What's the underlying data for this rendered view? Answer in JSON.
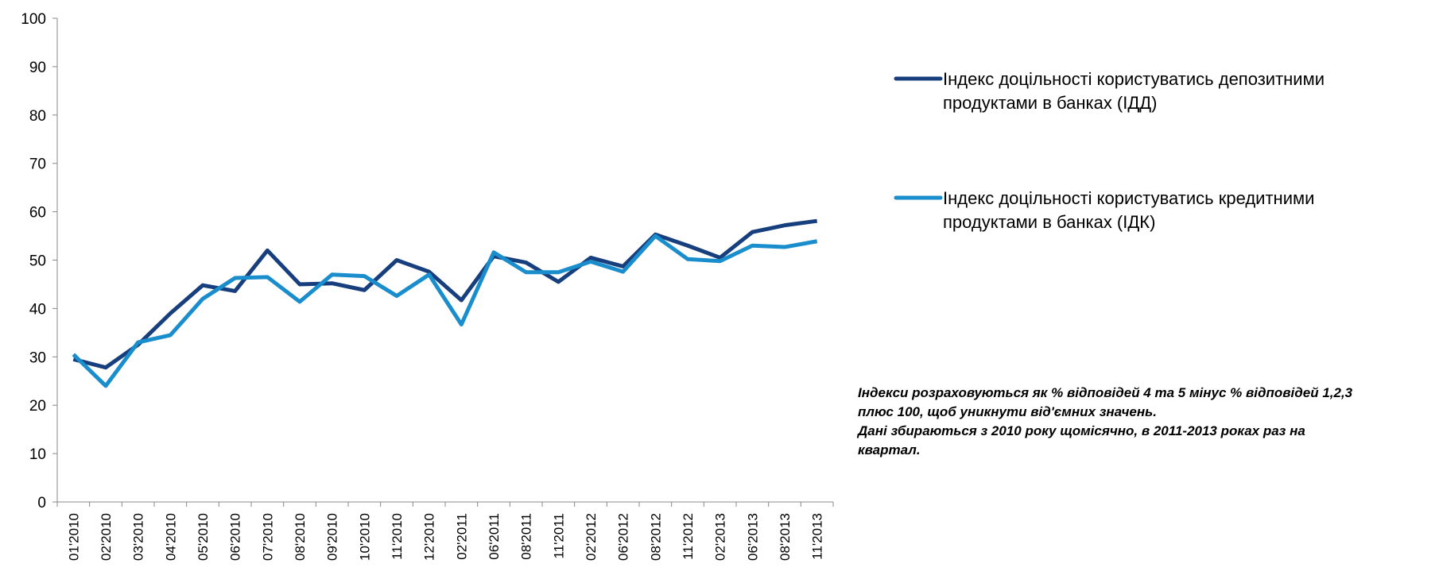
{
  "chart_data": {
    "type": "line",
    "categories": [
      "01'2010",
      "02'2010",
      "03'2010",
      "04'2010",
      "05'2010",
      "06'2010",
      "07'2010",
      "08'2010",
      "09'2010",
      "10'2010",
      "11'2010",
      "12'2010",
      "02'2011",
      "06'2011",
      "08'2011",
      "11'2011",
      "02'2012",
      "06'2012",
      "08'2012",
      "11'2012",
      "02'2013",
      "06'2013",
      "08'2013",
      "11'2013"
    ],
    "series": [
      {
        "name": "Індекс доцільності користуватись депозитними продуктами в банках (ІДД)",
        "color": "#173f7e",
        "values": [
          29.5,
          27.8,
          32.5,
          39,
          44.8,
          43.6,
          52,
          45,
          45.2,
          43.8,
          50,
          47.6,
          41.7,
          50.8,
          49.5,
          45.5,
          50.5,
          48.7,
          55.3,
          53,
          50.5,
          55.8,
          57.2,
          58.1
        ]
      },
      {
        "name": "Індекс доцільності користуватись кредитними продуктами в банках (ІДК)",
        "color": "#1a8dcc",
        "values": [
          30.5,
          24,
          33,
          34.5,
          42,
          46.3,
          46.5,
          41.4,
          47,
          46.7,
          42.6,
          47,
          36.7,
          51.6,
          47.5,
          47.5,
          49.7,
          47.6,
          55,
          50.2,
          49.8,
          53,
          52.7,
          53.9
        ]
      }
    ],
    "ylim": [
      0,
      100
    ],
    "yticks": [
      0,
      10,
      20,
      30,
      40,
      50,
      60,
      70,
      80,
      90,
      100
    ],
    "annotation": [
      "Індекси розраховуються як % відповідей 4 та 5 мінус % відповідей 1,2,3",
      "плюс 100, щоб уникнути від'ємних значень.",
      "Дані збираються з 2010 року щомісячно, в 2011-2013 роках раз на",
      "квартал."
    ]
  }
}
